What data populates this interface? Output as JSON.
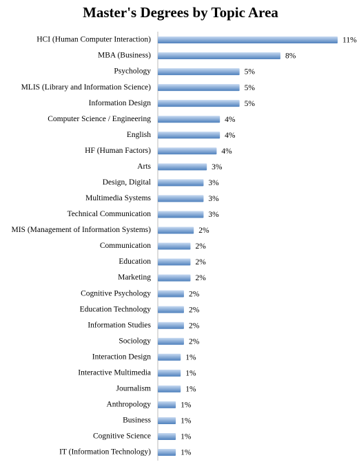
{
  "chart_data": {
    "type": "barh",
    "title": "Master's Degrees by Topic Area",
    "categories": [
      "HCI (Human Computer Interaction)",
      "MBA (Business)",
      "Psychology",
      "MLIS (Library and Information Science)",
      "Information Design",
      "Computer Science / Engineering",
      "English",
      "HF (Human Factors)",
      "Arts",
      "Design, Digital",
      "Multimedia Systems",
      "Technical Communication",
      "MIS (Management of Information Systems)",
      "Communication",
      "Education",
      "Marketing",
      "Cognitive Psychology",
      "Education Technology",
      "Information Studies",
      "Sociology",
      "Interaction Design",
      "Interactive Multimedia",
      "Journalism",
      "Anthropology",
      "Business",
      "Cognitive Science",
      "IT (Information Technology)"
    ],
    "values": [
      11.0,
      7.5,
      5.0,
      5.0,
      5.0,
      3.8,
      3.8,
      3.6,
      3.0,
      2.8,
      2.8,
      2.8,
      2.2,
      2.0,
      2.0,
      2.0,
      1.6,
      1.6,
      1.6,
      1.6,
      1.4,
      1.4,
      1.4,
      1.1,
      1.1,
      1.1,
      1.1
    ],
    "value_labels": [
      "11%",
      "8%",
      "5%",
      "5%",
      "5%",
      "4%",
      "4%",
      "4%",
      "3%",
      "3%",
      "3%",
      "3%",
      "2%",
      "2%",
      "2%",
      "2%",
      "2%",
      "2%",
      "2%",
      "2%",
      "1%",
      "1%",
      "1%",
      "1%",
      "1%",
      "1%",
      "1%"
    ],
    "color": "#4f81bd",
    "xlim": [
      0,
      11
    ]
  }
}
